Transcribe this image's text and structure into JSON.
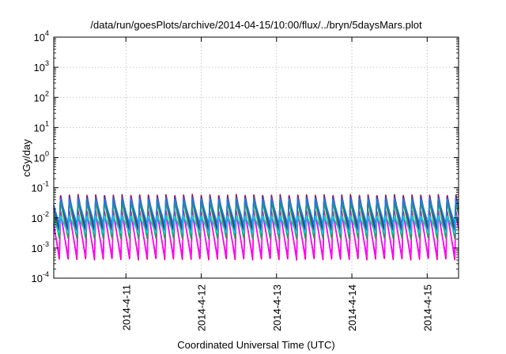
{
  "chart_data": {
    "type": "line",
    "title": "/data/run/goesPlots/archive/2014-04-15/10:00/flux/../bryn/5daysMars.plot",
    "xlabel": "Coordinated Universal Time (UTC)",
    "ylabel": "cGy/day",
    "y_scale": "log",
    "ylim": [
      0.0001,
      10000
    ],
    "xlim": [
      "2014-04-10T01:00",
      "2014-04-15T10:00"
    ],
    "x_ticks": [
      "2014-4-11",
      "2014-4-12",
      "2014-4-13",
      "2014-4-14",
      "2014-4-15"
    ],
    "y_ticks": [
      {
        "base": "10",
        "exp": "-4"
      },
      {
        "base": "10",
        "exp": "-3"
      },
      {
        "base": "10",
        "exp": "-2"
      },
      {
        "base": "10",
        "exp": "-1"
      },
      {
        "base": "10",
        "exp": "0"
      },
      {
        "base": "10",
        "exp": "1"
      },
      {
        "base": "10",
        "exp": "2"
      },
      {
        "base": "10",
        "exp": "3"
      },
      {
        "base": "10",
        "exp": "4"
      }
    ],
    "grid": true,
    "period_hours": 2.8,
    "series": [
      {
        "color": "#e8008c",
        "peak": 0.018,
        "trough": 0.0004
      },
      {
        "color": "#ff00ff",
        "peak": 0.014,
        "trough": 0.0005
      },
      {
        "color": "#a30a4a",
        "peak": 0.06,
        "trough": 0.003
      },
      {
        "color": "#d41616",
        "peak": 0.05,
        "trough": 0.002
      },
      {
        "color": "#1fa84a",
        "peak": 0.035,
        "trough": 0.002
      },
      {
        "color": "#2b3fcf",
        "peak": 0.05,
        "trough": 0.004
      },
      {
        "color": "#1f7fe0",
        "peak": 0.045,
        "trough": 0.006
      },
      {
        "color": "#00d4d4",
        "peak": 0.012,
        "trough": 0.003
      }
    ]
  }
}
